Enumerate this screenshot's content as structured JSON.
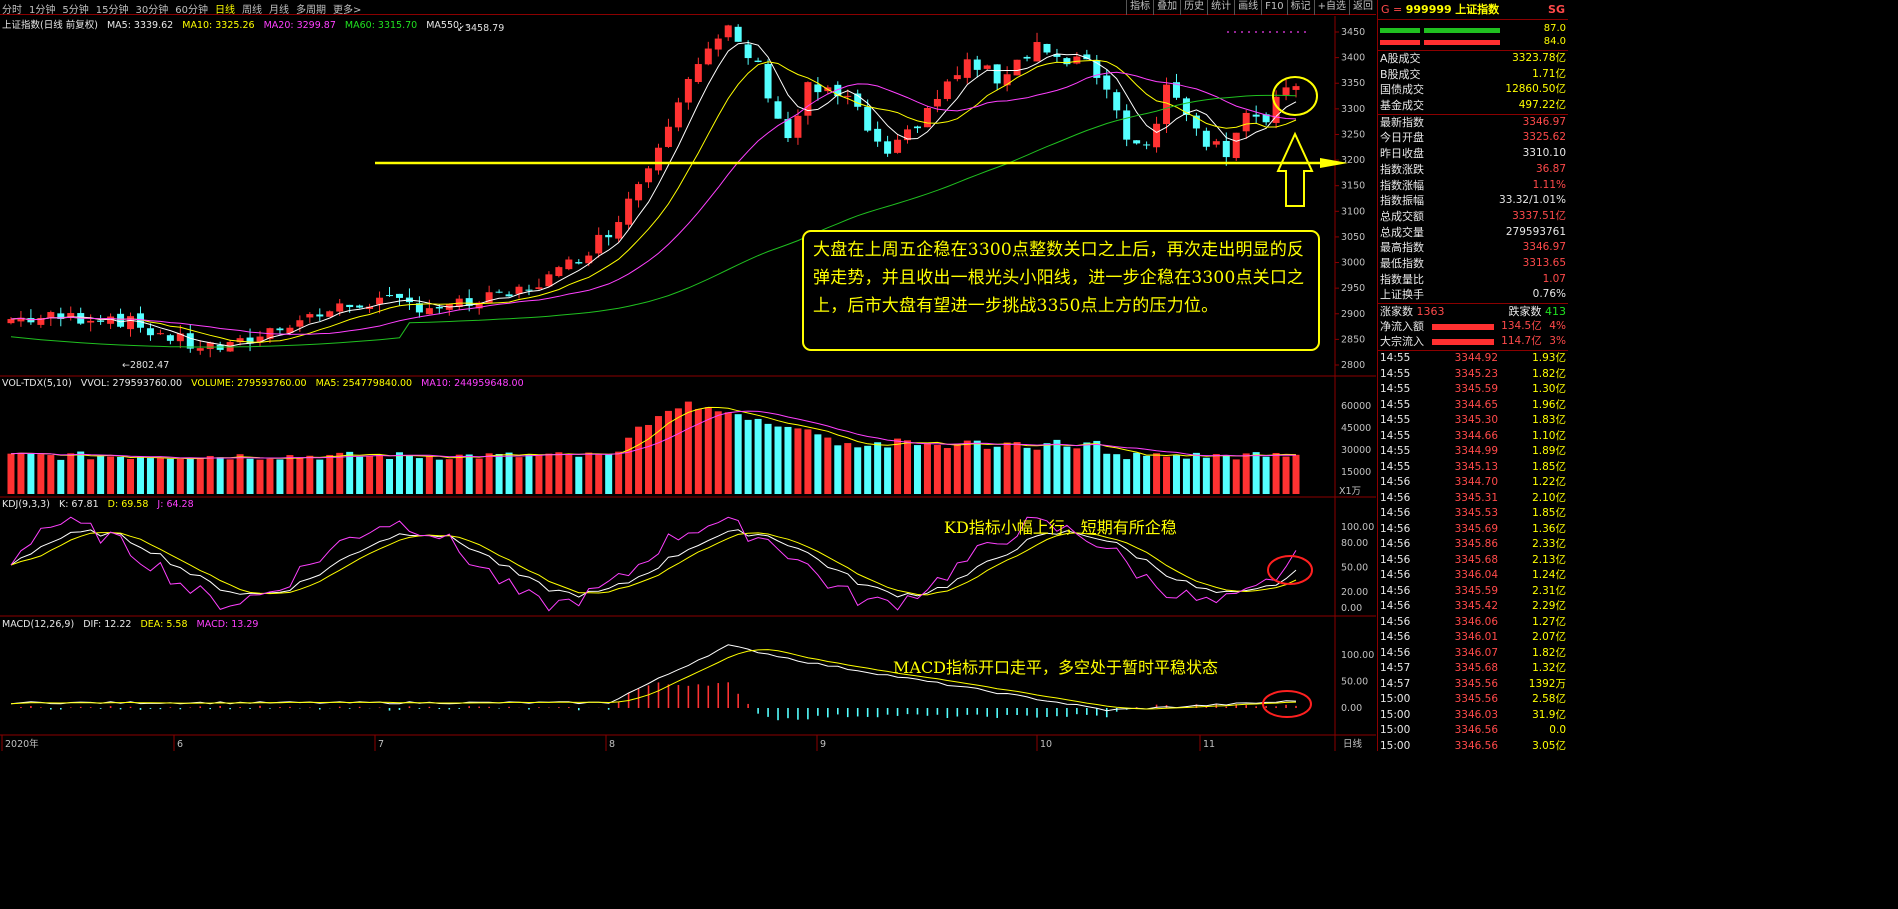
{
  "toolbar": {
    "periods": [
      "分时",
      "1分钟",
      "5分钟",
      "15分钟",
      "30分钟",
      "60分钟",
      "日线",
      "周线",
      "月线",
      "多周期",
      "更多>"
    ],
    "active_period": "日线",
    "tools": [
      "指标",
      "叠加",
      "历史",
      "统计",
      "画线",
      "F10",
      "标记",
      "+自选",
      "返回"
    ]
  },
  "price_panel": {
    "label": "上证指数(日线 前复权)",
    "ma5": "MA5: 3339.62",
    "ma10": "MA10: 3325.26",
    "ma20": "MA20: 3299.87",
    "ma60": "MA60: 3315.70",
    "ma550": "MA550: -",
    "high_label": "3458.79",
    "low_label": "2802.47",
    "axis": [
      "3450",
      "3400",
      "3350",
      "3300",
      "3250",
      "3200",
      "3150",
      "3100",
      "3050",
      "3000",
      "2950",
      "2900",
      "2850",
      "2800"
    ]
  },
  "vol_panel": {
    "label": "VOL-TDX(5,10)",
    "vvol": "VVOL: 279593760.00",
    "volume": "VOLUME: 279593760.00",
    "ma5": "MA5: 254779840.00",
    "ma10": "MA10: 244959648.00",
    "axis": [
      "60000",
      "45000",
      "30000",
      "15000"
    ],
    "unit": "X1万"
  },
  "kdj_panel": {
    "label": "KDJ(9,3,3)",
    "k": "K: 67.81",
    "d": "D: 69.58",
    "j": "J: 64.28",
    "axis": [
      "100.00",
      "80.00",
      "50.00",
      "20.00",
      "0.00"
    ]
  },
  "macd_panel": {
    "label": "MACD(12,26,9)",
    "dif": "DIF: 12.22",
    "dea": "DEA: 5.58",
    "macd": "MACD: 13.29",
    "axis": [
      "100.00",
      "50.00",
      "0.00"
    ]
  },
  "xaxis": {
    "labels": [
      "2020年",
      "6",
      "7",
      "8",
      "9",
      "10",
      "11"
    ],
    "tag": "日线"
  },
  "annotations": {
    "main": "大盘在上周五企稳在3300点整数关口之上后，再次走出明显的反弹走势，并且收出一根光头小阳线，进一步企稳在3300点关口之上，后市大盘有望进一步挑战3350点上方的压力位。",
    "kd": "KD指标小幅上行，短期有所企稳",
    "macd": "MACD指标开口走平，多空处于暂时平稳状态"
  },
  "right_panel": {
    "header": {
      "code": "999999",
      "name": "上证指数",
      "tag": "SG",
      "prefix": "G ="
    },
    "bars": [
      "87.0",
      "84.0"
    ],
    "stats1": [
      [
        "A股成交",
        "3323.78亿"
      ],
      [
        "B股成交",
        "1.71亿"
      ],
      [
        "国债成交",
        "12860.50亿"
      ],
      [
        "基金成交",
        "497.22亿"
      ]
    ],
    "stats2": [
      [
        "最新指数",
        "3346.97"
      ],
      [
        "今日开盘",
        "3325.62"
      ],
      [
        "昨日收盘",
        "3310.10"
      ],
      [
        "指数涨跌",
        "36.87"
      ],
      [
        "指数涨幅",
        "1.11%"
      ],
      [
        "指数振幅",
        "33.32/1.01%"
      ],
      [
        "总成交额",
        "3337.51亿"
      ],
      [
        "总成交量",
        "279593761"
      ],
      [
        "最高指数",
        "3346.97"
      ],
      [
        "最低指数",
        "3313.65"
      ],
      [
        "指数量比",
        "1.07"
      ],
      [
        "上证换手",
        "0.76%"
      ]
    ],
    "updown": {
      "up_label": "涨家数",
      "up": "1363",
      "down_label": "跌家数",
      "down": "413"
    },
    "flows": [
      [
        "净流入额",
        "134.5亿",
        "4%"
      ],
      [
        "大宗流入",
        "114.7亿",
        "3%"
      ]
    ],
    "ticks": [
      [
        "14:55",
        "3344.92",
        "1.93亿"
      ],
      [
        "14:55",
        "3345.23",
        "1.82亿"
      ],
      [
        "14:55",
        "3345.59",
        "1.30亿"
      ],
      [
        "14:55",
        "3344.65",
        "1.96亿"
      ],
      [
        "14:55",
        "3345.30",
        "1.83亿"
      ],
      [
        "14:55",
        "3344.66",
        "1.10亿"
      ],
      [
        "14:55",
        "3344.99",
        "1.89亿"
      ],
      [
        "14:55",
        "3345.13",
        "1.85亿"
      ],
      [
        "14:56",
        "3344.70",
        "1.22亿"
      ],
      [
        "14:56",
        "3345.31",
        "2.10亿"
      ],
      [
        "14:56",
        "3345.53",
        "1.85亿"
      ],
      [
        "14:56",
        "3345.69",
        "1.36亿"
      ],
      [
        "14:56",
        "3345.86",
        "2.33亿"
      ],
      [
        "14:56",
        "3345.68",
        "2.13亿"
      ],
      [
        "14:56",
        "3346.04",
        "1.24亿"
      ],
      [
        "14:56",
        "3345.59",
        "2.31亿"
      ],
      [
        "14:56",
        "3345.42",
        "2.29亿"
      ],
      [
        "14:56",
        "3346.06",
        "1.27亿"
      ],
      [
        "14:56",
        "3346.01",
        "2.07亿"
      ],
      [
        "14:56",
        "3346.07",
        "1.82亿"
      ],
      [
        "14:57",
        "3345.68",
        "1.32亿"
      ],
      [
        "14:57",
        "3345.56",
        "1392万"
      ],
      [
        "15:00",
        "3345.56",
        "2.58亿"
      ],
      [
        "15:00",
        "3346.03",
        "31.9亿"
      ],
      [
        "15:00",
        "3346.56",
        "0.0"
      ],
      [
        "15:00",
        "3346.56",
        "3.05亿"
      ]
    ]
  }
}
